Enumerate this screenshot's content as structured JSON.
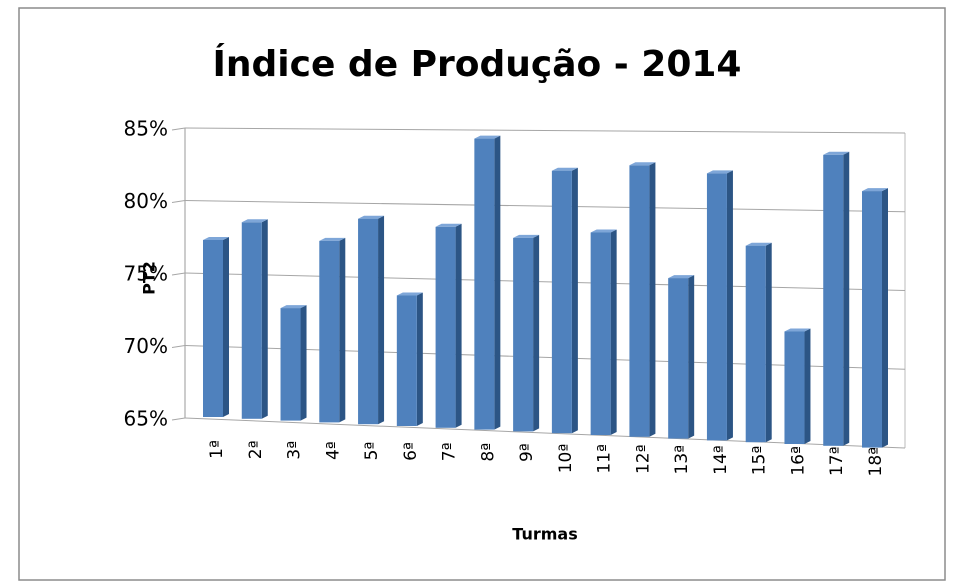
{
  "chart_data": {
    "type": "bar3d",
    "title": "Índice de Produção - 2014",
    "x_label": "Turmas",
    "y_label": "PT2",
    "categories": [
      "1ª",
      "2ª",
      "3ª",
      "4ª",
      "5ª",
      "6ª",
      "7ª",
      "8ª",
      "9ª",
      "10ª",
      "11ª",
      "12ª",
      "13ª",
      "14ª",
      "15ª",
      "16ª",
      "17ª",
      "18ª"
    ],
    "values": [
      76.8,
      78.1,
      72.5,
      77.1,
      78.7,
      73.7,
      78.4,
      84.4,
      77.9,
      82.5,
      78.5,
      83.1,
      75.7,
      82.8,
      78.1,
      72.5,
      84.4,
      82.1
    ],
    "color": "#4f81bd",
    "ylim": [
      65,
      85
    ],
    "yticks": [
      {
        "value": 65,
        "label": "65%"
      },
      {
        "value": 70,
        "label": "70%"
      },
      {
        "value": 75,
        "label": "75%"
      },
      {
        "value": 80,
        "label": "80%"
      },
      {
        "value": 85,
        "label": "85%"
      }
    ],
    "grid": true
  }
}
